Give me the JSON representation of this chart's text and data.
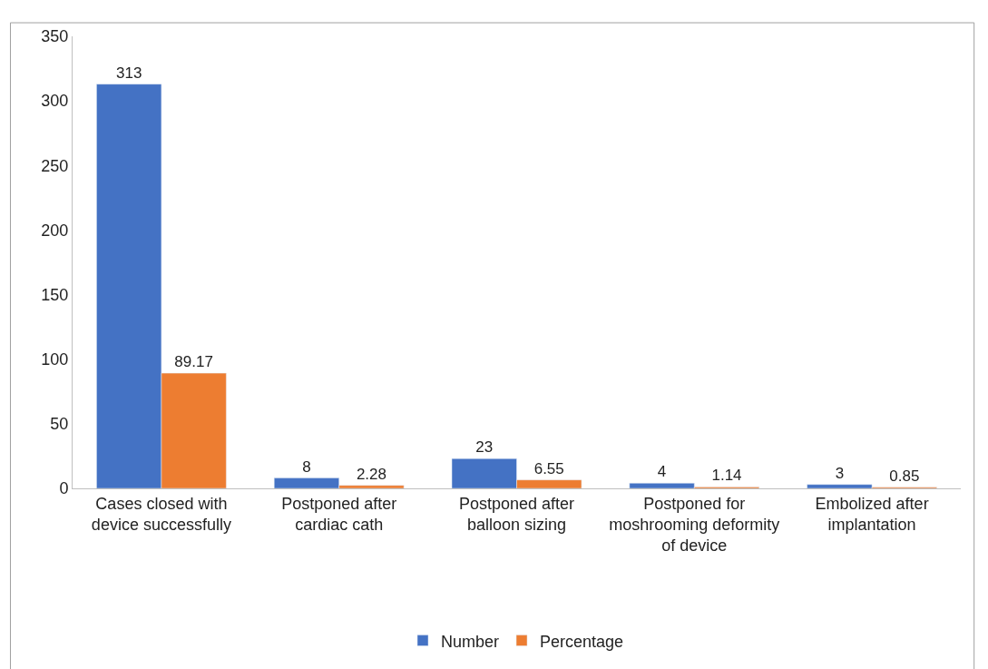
{
  "chart_data": {
    "type": "bar",
    "categories": [
      "Cases closed with device successfully",
      "Postponed after cardiac cath",
      "Postponed after balloon sizing",
      "Postponed for moshrooming deformity of device",
      "Embolized after implantation"
    ],
    "series": [
      {
        "name": "Number",
        "color": "#4472c4",
        "values": [
          313,
          8,
          23,
          4,
          3
        ]
      },
      {
        "name": "Percentage",
        "color": "#ed7d31",
        "values": [
          89.17,
          2.28,
          6.55,
          1.14,
          0.85
        ]
      }
    ],
    "ylim": [
      0,
      350
    ],
    "yticks": [
      0,
      50,
      100,
      150,
      200,
      250,
      300,
      350
    ],
    "data_labels": true,
    "legend": "bottom"
  }
}
